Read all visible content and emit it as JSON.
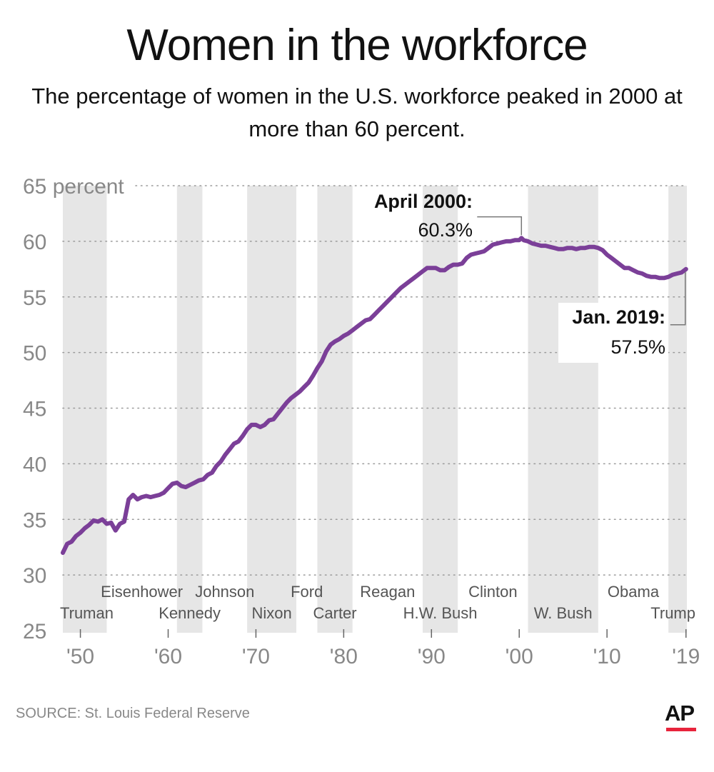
{
  "title": "Women in the workforce",
  "subtitle": "The percentage of women in the U.S. workforce peaked in 2000 at more than 60 percent.",
  "source": "SOURCE: St. Louis Federal Reserve",
  "logo": "AP",
  "colors": {
    "line": "#7b3f98",
    "shade": "#e6e6e6",
    "axis_text": "#888888",
    "grid": "#9a9a9a",
    "logo_bar": "#e8243c"
  },
  "chart_data": {
    "type": "line",
    "xlim": [
      1948,
      2019.1
    ],
    "ylim": [
      25,
      65
    ],
    "grid": true,
    "y_ticks": [
      {
        "value": 65,
        "label": "65 percent"
      },
      {
        "value": 60,
        "label": "60"
      },
      {
        "value": 55,
        "label": "55"
      },
      {
        "value": 50,
        "label": "50"
      },
      {
        "value": 45,
        "label": "45"
      },
      {
        "value": 40,
        "label": "40"
      },
      {
        "value": 35,
        "label": "35"
      },
      {
        "value": 30,
        "label": "30"
      },
      {
        "value": 25,
        "label": "25"
      }
    ],
    "x_ticks": [
      {
        "value": 1950,
        "label": "'50"
      },
      {
        "value": 1960,
        "label": "'60"
      },
      {
        "value": 1970,
        "label": "'70"
      },
      {
        "value": 1980,
        "label": "'80"
      },
      {
        "value": 1990,
        "label": "'90"
      },
      {
        "value": 2000,
        "label": "'00"
      },
      {
        "value": 2010,
        "label": "'10"
      },
      {
        "value": 2019,
        "label": "'19"
      }
    ],
    "series": [
      {
        "x": [
          1948.0,
          1948.5,
          1949.0,
          1949.5,
          1950.0,
          1950.5,
          1951.0,
          1951.5,
          1952.0,
          1952.5,
          1953.0,
          1953.5,
          1954.0,
          1954.5,
          1955.0,
          1955.5,
          1956.0,
          1956.5,
          1957.0,
          1957.5,
          1958.0,
          1958.5,
          1959.0,
          1959.5,
          1960.0,
          1960.5,
          1961.0,
          1961.5,
          1962.0,
          1962.5,
          1963.0,
          1963.5,
          1964.0,
          1964.5,
          1965.0,
          1965.5,
          1966.0,
          1966.5,
          1967.0,
          1967.5,
          1968.0,
          1968.5,
          1969.0,
          1969.5,
          1970.0,
          1970.5,
          1971.0,
          1971.5,
          1972.0,
          1972.5,
          1973.0,
          1973.5,
          1974.0,
          1974.5,
          1975.0,
          1975.5,
          1976.0,
          1976.5,
          1977.0,
          1977.5,
          1978.0,
          1978.5,
          1979.0,
          1979.5,
          1980.0,
          1980.5,
          1981.0,
          1981.5,
          1982.0,
          1982.5,
          1983.0,
          1983.5,
          1984.0,
          1984.5,
          1985.0,
          1985.5,
          1986.0,
          1986.5,
          1987.0,
          1987.5,
          1988.0,
          1988.5,
          1989.0,
          1989.5,
          1990.0,
          1990.5,
          1991.0,
          1991.5,
          1992.0,
          1992.5,
          1993.0,
          1993.5,
          1994.0,
          1994.5,
          1995.0,
          1995.5,
          1996.0,
          1996.5,
          1997.0,
          1997.5,
          1998.0,
          1998.5,
          1999.0,
          1999.5,
          2000.0,
          2000.25,
          2000.5,
          2001.0,
          2001.5,
          2002.0,
          2002.5,
          2003.0,
          2003.5,
          2004.0,
          2004.5,
          2005.0,
          2005.5,
          2006.0,
          2006.5,
          2007.0,
          2007.5,
          2008.0,
          2008.5,
          2009.0,
          2009.5,
          2010.0,
          2010.5,
          2011.0,
          2011.5,
          2012.0,
          2012.5,
          2013.0,
          2013.5,
          2014.0,
          2014.5,
          2015.0,
          2015.5,
          2016.0,
          2016.5,
          2017.0,
          2017.5,
          2018.0,
          2018.5,
          2019.0
        ],
        "values": [
          32.0,
          32.8,
          33.0,
          33.5,
          33.8,
          34.2,
          34.5,
          34.9,
          34.8,
          35.0,
          34.6,
          34.7,
          34.0,
          34.6,
          34.8,
          36.8,
          37.2,
          36.8,
          37.0,
          37.1,
          37.0,
          37.1,
          37.2,
          37.4,
          37.8,
          38.2,
          38.3,
          38.0,
          37.9,
          38.1,
          38.3,
          38.5,
          38.6,
          39.0,
          39.2,
          39.8,
          40.2,
          40.8,
          41.3,
          41.8,
          42.0,
          42.5,
          43.1,
          43.5,
          43.5,
          43.3,
          43.5,
          43.9,
          44.0,
          44.5,
          45.0,
          45.5,
          45.9,
          46.2,
          46.5,
          46.9,
          47.3,
          47.9,
          48.6,
          49.2,
          50.1,
          50.7,
          51.0,
          51.2,
          51.5,
          51.7,
          52.0,
          52.3,
          52.6,
          52.9,
          53.0,
          53.4,
          53.8,
          54.2,
          54.6,
          55.0,
          55.4,
          55.8,
          56.1,
          56.4,
          56.7,
          57.0,
          57.3,
          57.6,
          57.6,
          57.6,
          57.4,
          57.4,
          57.7,
          57.9,
          57.9,
          58.0,
          58.5,
          58.8,
          58.9,
          59.0,
          59.1,
          59.4,
          59.7,
          59.8,
          59.9,
          60.0,
          60.0,
          60.1,
          60.1,
          60.3,
          60.1,
          60.0,
          59.8,
          59.7,
          59.6,
          59.6,
          59.5,
          59.4,
          59.3,
          59.3,
          59.4,
          59.4,
          59.3,
          59.4,
          59.4,
          59.5,
          59.5,
          59.4,
          59.2,
          58.8,
          58.5,
          58.2,
          57.9,
          57.6,
          57.6,
          57.4,
          57.2,
          57.1,
          56.9,
          56.8,
          56.8,
          56.7,
          56.7,
          56.8,
          57.0,
          57.1,
          57.2,
          57.5
        ]
      }
    ],
    "presidents": [
      {
        "name": "Truman",
        "start": 1948.0,
        "end": 1953.0,
        "shaded": true,
        "label_row": "lower"
      },
      {
        "name": "Eisenhower",
        "start": 1953.0,
        "end": 1961.0,
        "shaded": false,
        "label_row": "upper"
      },
      {
        "name": "Kennedy",
        "start": 1961.0,
        "end": 1963.9,
        "shaded": true,
        "label_row": "lower"
      },
      {
        "name": "Johnson",
        "start": 1963.9,
        "end": 1969.0,
        "shaded": false,
        "label_row": "upper"
      },
      {
        "name": "Nixon",
        "start": 1969.0,
        "end": 1974.6,
        "shaded": true,
        "label_row": "lower"
      },
      {
        "name": "Ford",
        "start": 1974.6,
        "end": 1977.0,
        "shaded": false,
        "label_row": "upper"
      },
      {
        "name": "Carter",
        "start": 1977.0,
        "end": 1981.0,
        "shaded": true,
        "label_row": "lower"
      },
      {
        "name": "Reagan",
        "start": 1981.0,
        "end": 1989.0,
        "shaded": false,
        "label_row": "upper"
      },
      {
        "name": "H.W. Bush",
        "start": 1989.0,
        "end": 1993.0,
        "shaded": true,
        "label_row": "lower"
      },
      {
        "name": "Clinton",
        "start": 1993.0,
        "end": 2001.0,
        "shaded": false,
        "label_row": "upper"
      },
      {
        "name": "W. Bush",
        "start": 2001.0,
        "end": 2009.0,
        "shaded": true,
        "label_row": "lower"
      },
      {
        "name": "Obama",
        "start": 2009.0,
        "end": 2017.0,
        "shaded": false,
        "label_row": "upper"
      },
      {
        "name": "Trump",
        "start": 2017.0,
        "end": 2019.1,
        "shaded": true,
        "label_row": "lower"
      }
    ],
    "annotations": [
      {
        "title": "April 2000:",
        "value_label": "60.3%",
        "x": 2000.25,
        "y": 60.3,
        "side": "left-above"
      },
      {
        "title": "Jan. 2019:",
        "value_label": "57.5%",
        "x": 2019.0,
        "y": 57.5,
        "side": "left-below"
      }
    ]
  }
}
